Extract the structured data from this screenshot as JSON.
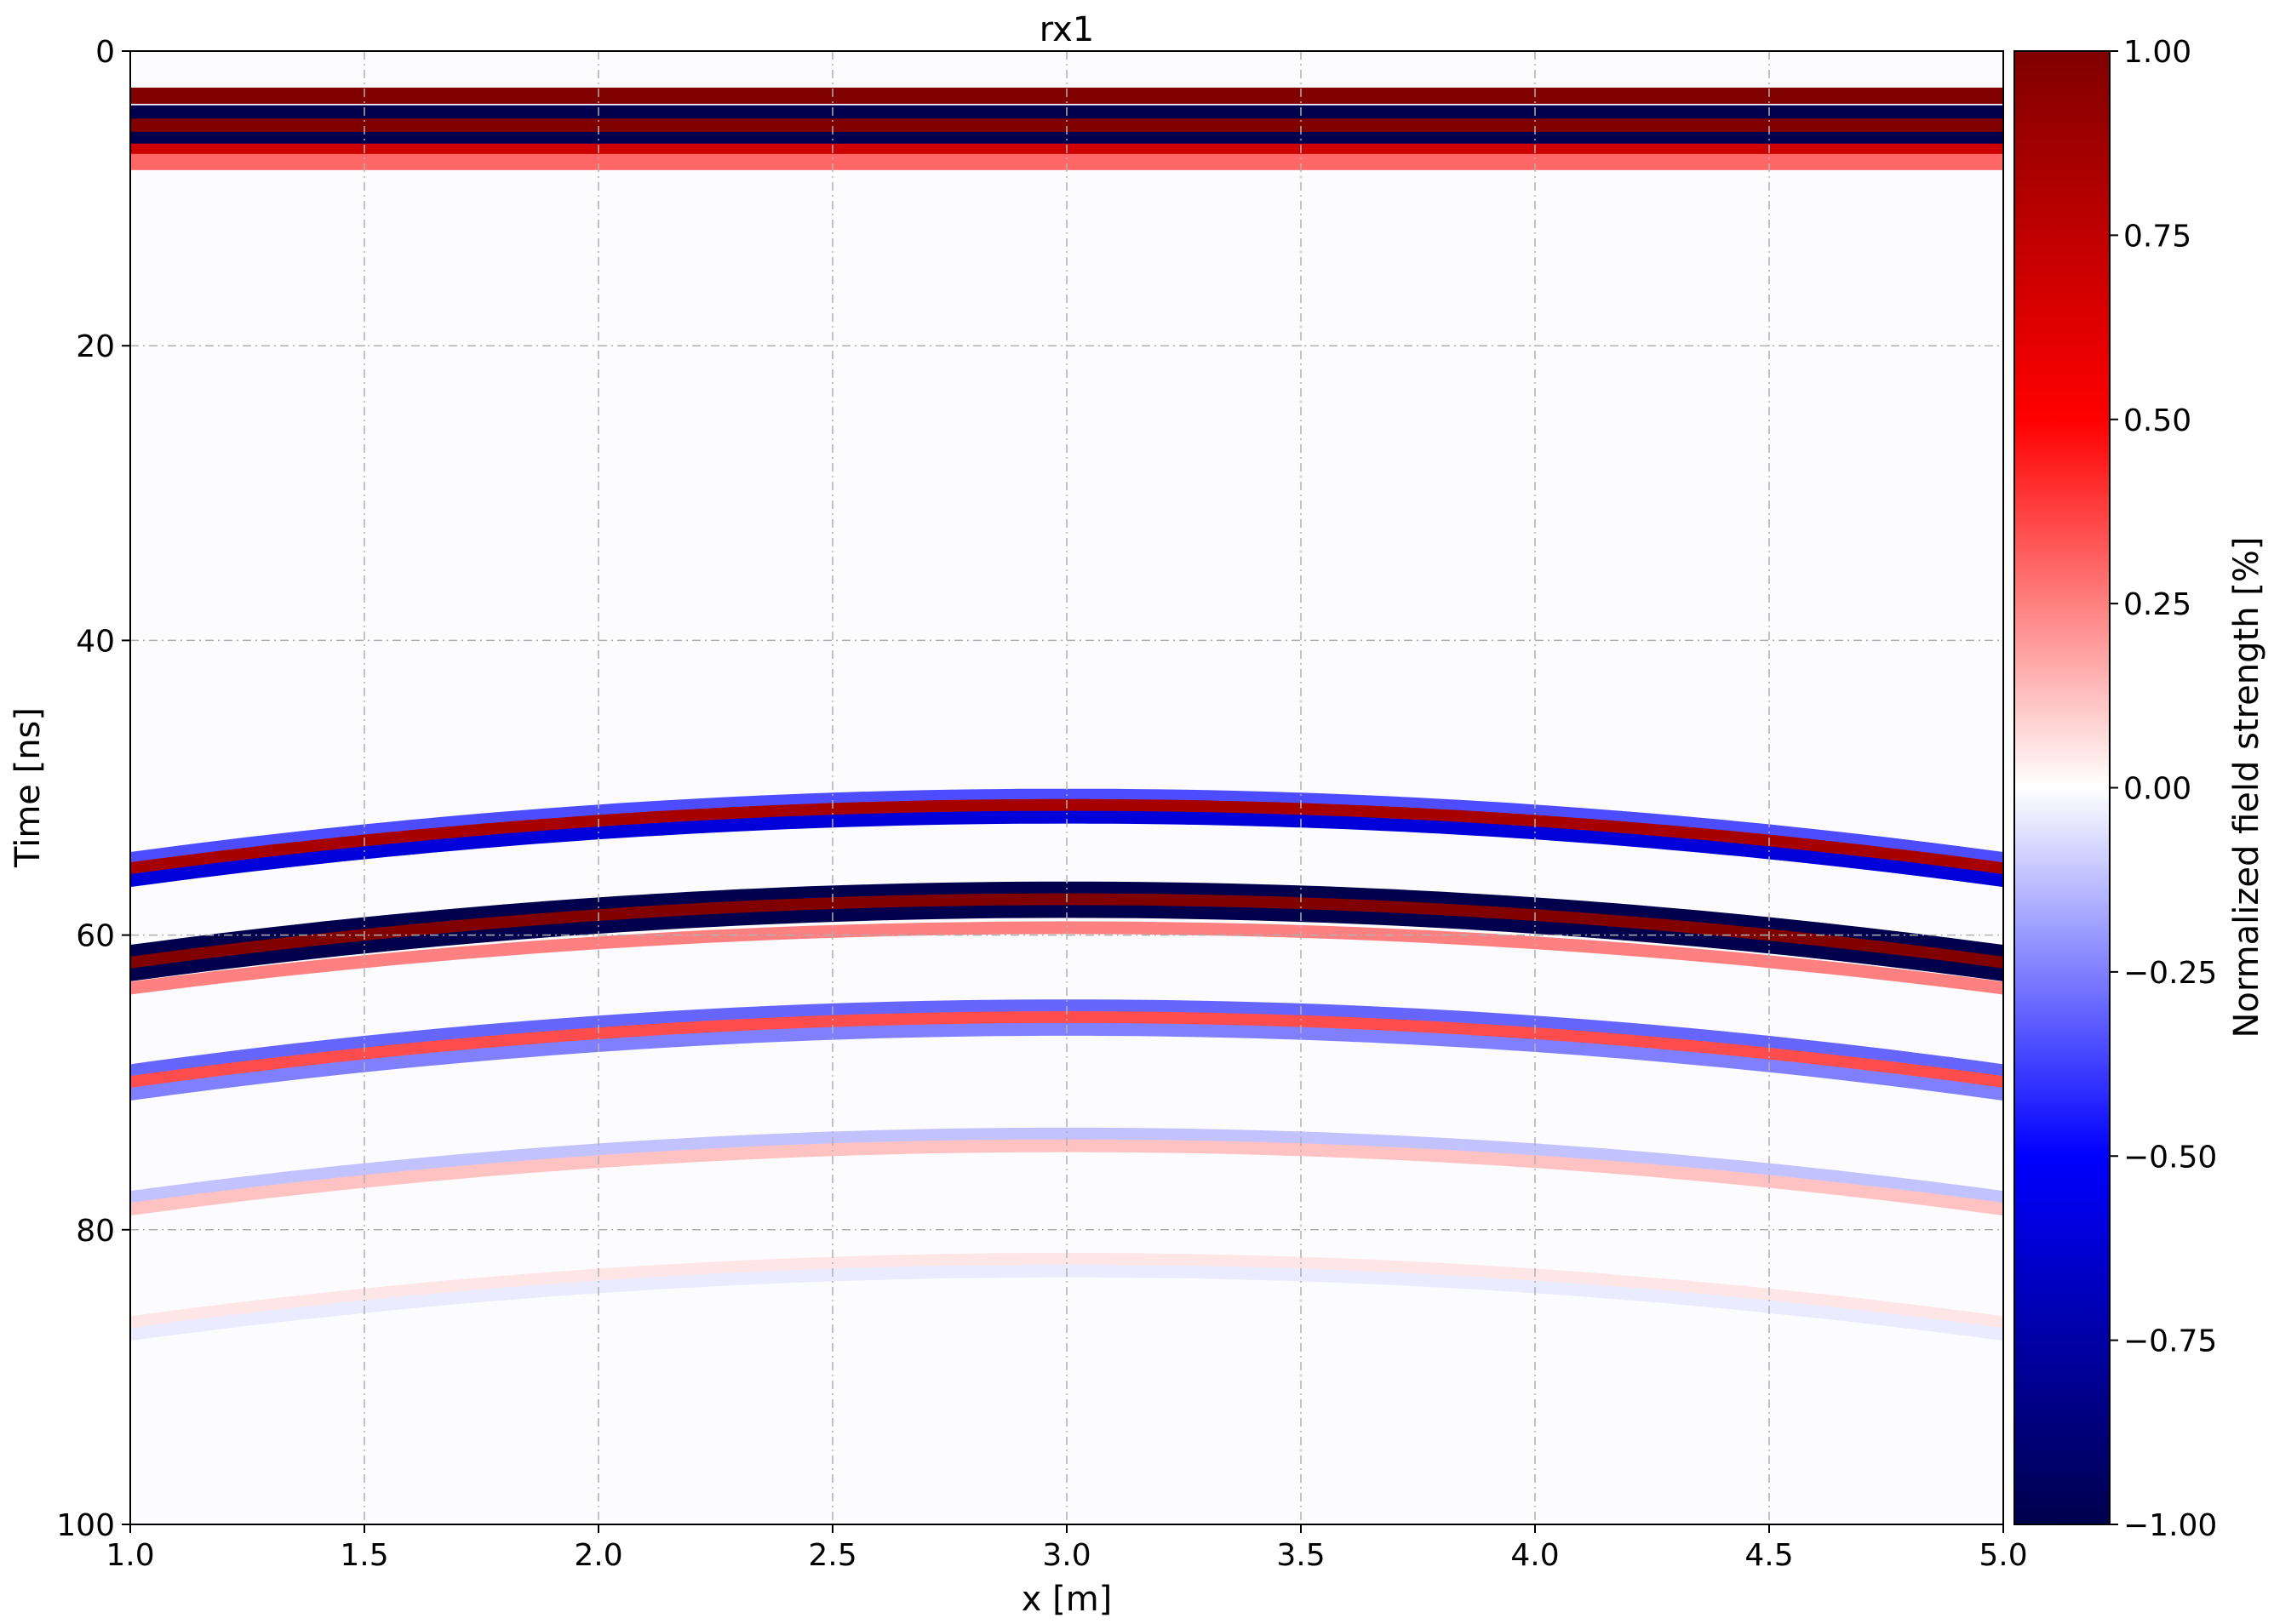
{
  "chart_data": {
    "type": "heatmap",
    "title": "rx1",
    "xlabel": "x [m]",
    "ylabel": "Time [ns]",
    "xlim": [
      1.0,
      5.0
    ],
    "ylim": [
      100,
      0
    ],
    "y_inverted": true,
    "grid": true,
    "grid_style": "dash-dot",
    "x_ticks": [
      "1.0",
      "1.5",
      "2.0",
      "2.5",
      "3.0",
      "3.5",
      "4.0",
      "4.5",
      "5.0"
    ],
    "y_ticks": [
      "0",
      "20",
      "40",
      "60",
      "80",
      "100"
    ],
    "colormap": "seismic",
    "colorbar": {
      "label": "Normalized field strength [%]",
      "range": [
        -1.0,
        1.0
      ],
      "ticks": [
        "1.00",
        "0.75",
        "0.50",
        "0.25",
        "0.00",
        "−0.25",
        "−0.50",
        "−0.75",
        "−1.00"
      ],
      "colors": {
        "min": "#00004c",
        "low": "#0000ff",
        "mid": "#ffffff",
        "high": "#ff0000",
        "max": "#800000"
      }
    },
    "direct_wave": {
      "note_free": true,
      "bands": [
        {
          "t": 3.0,
          "amp": 1.0
        },
        {
          "t": 4.2,
          "amp": -1.0
        },
        {
          "t": 5.1,
          "amp": 1.0
        },
        {
          "t": 6.0,
          "amp": -1.0
        },
        {
          "t": 6.8,
          "amp": 0.7
        },
        {
          "t": 7.5,
          "amp": 0.3
        }
      ]
    },
    "hyperbolas": [
      {
        "apex_x": 3.0,
        "apex_t": 50.5,
        "edge_t": 54.8,
        "amp": -0.35
      },
      {
        "apex_x": 3.0,
        "apex_t": 51.2,
        "edge_t": 55.5,
        "amp": 0.85
      },
      {
        "apex_x": 3.0,
        "apex_t": 52.0,
        "edge_t": 56.3,
        "amp": -0.6
      },
      {
        "apex_x": 3.0,
        "apex_t": 56.8,
        "edge_t": 61.1,
        "amp": -1.0
      },
      {
        "apex_x": 3.0,
        "apex_t": 57.6,
        "edge_t": 61.9,
        "amp": 1.0
      },
      {
        "apex_x": 3.0,
        "apex_t": 58.4,
        "edge_t": 62.7,
        "amp": -1.0
      },
      {
        "apex_x": 3.0,
        "apex_t": 59.5,
        "edge_t": 63.6,
        "amp": 0.25
      },
      {
        "apex_x": 3.0,
        "apex_t": 64.8,
        "edge_t": 69.2,
        "amp": -0.3
      },
      {
        "apex_x": 3.0,
        "apex_t": 65.6,
        "edge_t": 70.0,
        "amp": 0.35
      },
      {
        "apex_x": 3.0,
        "apex_t": 66.4,
        "edge_t": 70.8,
        "amp": -0.25
      },
      {
        "apex_x": 3.0,
        "apex_t": 73.5,
        "edge_t": 77.8,
        "amp": -0.12
      },
      {
        "apex_x": 3.0,
        "apex_t": 74.3,
        "edge_t": 78.6,
        "amp": 0.12
      },
      {
        "apex_x": 3.0,
        "apex_t": 82.0,
        "edge_t": 86.3,
        "amp": 0.05
      },
      {
        "apex_x": 3.0,
        "apex_t": 82.8,
        "edge_t": 87.1,
        "amp": -0.04
      }
    ]
  }
}
